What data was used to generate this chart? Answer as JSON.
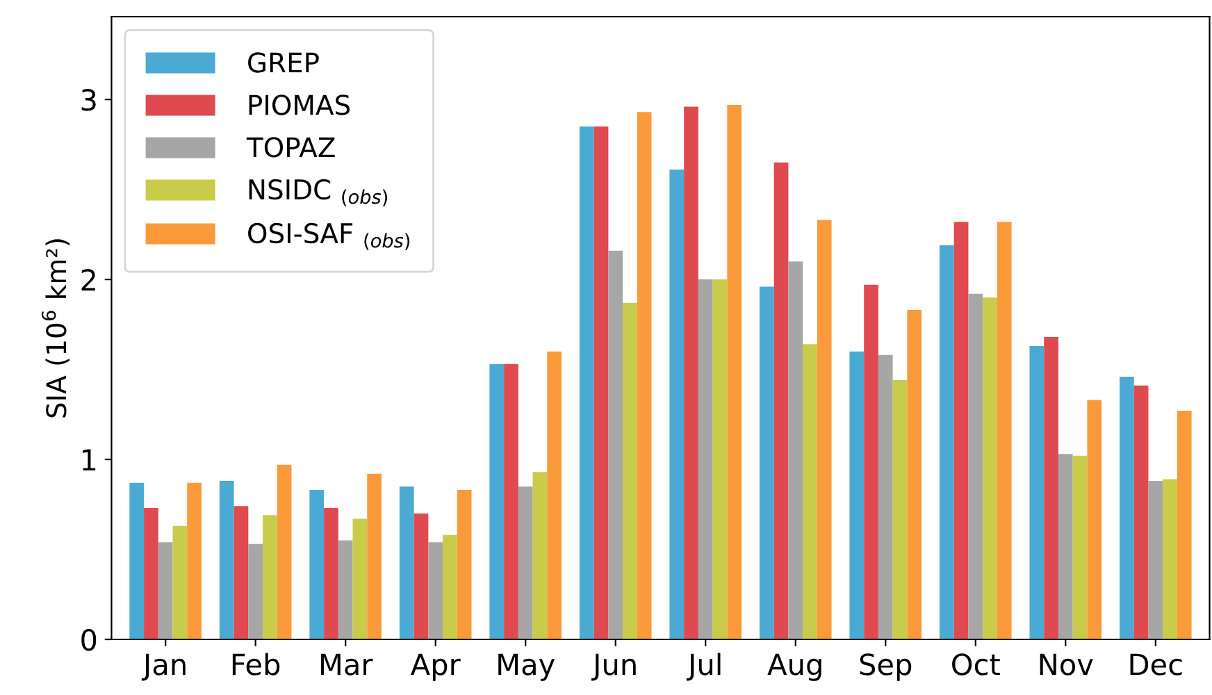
{
  "chart_data": {
    "type": "bar",
    "ylabel": "SIA (10$^{6}$ km²)",
    "categories": [
      "Jan",
      "Feb",
      "Mar",
      "Apr",
      "May",
      "Jun",
      "Jul",
      "Aug",
      "Sep",
      "Oct",
      "Nov",
      "Dec"
    ],
    "series": [
      {
        "name": "GREP",
        "color": "#4aaad4",
        "values": [
          0.87,
          0.88,
          0.83,
          0.85,
          1.53,
          2.85,
          2.61,
          1.96,
          1.6,
          2.19,
          1.63,
          1.46
        ]
      },
      {
        "name": "PIOMAS",
        "color": "#de4a4f",
        "values": [
          0.73,
          0.74,
          0.73,
          0.7,
          1.53,
          2.85,
          2.96,
          2.65,
          1.97,
          2.32,
          1.68,
          1.41
        ]
      },
      {
        "name": "TOPAZ",
        "color": "#a6a6a6",
        "values": [
          0.54,
          0.53,
          0.55,
          0.54,
          0.85,
          2.16,
          2.0,
          2.1,
          1.58,
          1.92,
          1.03,
          0.88
        ]
      },
      {
        "name": "NSIDC $_{(obs)}$",
        "color": "#c8cc4a",
        "values": [
          0.63,
          0.69,
          0.67,
          0.58,
          0.93,
          1.87,
          2.0,
          1.64,
          1.44,
          1.9,
          1.02,
          0.89
        ]
      },
      {
        "name": "OSI-SAF $_{(obs)}$",
        "color": "#fb9a3a",
        "values": [
          0.87,
          0.97,
          0.92,
          0.83,
          1.6,
          2.93,
          2.97,
          2.33,
          1.83,
          2.32,
          1.33,
          1.27
        ]
      }
    ],
    "ylim": [
      0,
      3.46
    ],
    "yticks": [
      0,
      1,
      2,
      3
    ],
    "grid": false,
    "legend": "top left"
  }
}
